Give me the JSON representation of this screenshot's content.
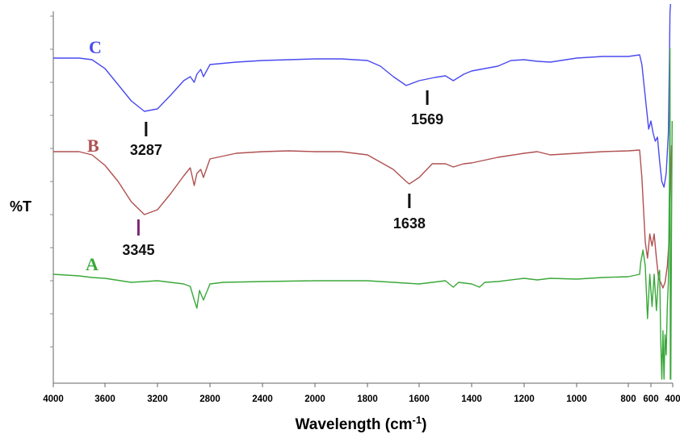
{
  "chart_data": {
    "type": "line",
    "xlabel": "Wavelength (cm",
    "xlabel_sup": "-1",
    "xlabel_close": ")",
    "ylabel": "%T",
    "xlim": [
      4000,
      400
    ],
    "x_ticks": [
      4000,
      3600,
      3200,
      2800,
      2400,
      2000,
      1800,
      1600,
      1400,
      1200,
      1000,
      800,
      600,
      400
    ],
    "x_tick_labels": [
      "4000",
      "3600",
      "3200",
      "2800",
      "2400",
      "2000",
      "1800",
      "1600",
      "1400",
      "1200",
      "1000",
      "800",
      "600",
      "400"
    ],
    "grid": false,
    "series": [
      {
        "name": "C",
        "color": "#4a4af0",
        "points": [
          [
            4000,
            72
          ],
          [
            3800,
            72
          ],
          [
            3700,
            74
          ],
          [
            3600,
            85
          ],
          [
            3500,
            105
          ],
          [
            3400,
            125
          ],
          [
            3300,
            138
          ],
          [
            3200,
            135
          ],
          [
            3100,
            118
          ],
          [
            3000,
            100
          ],
          [
            2950,
            95
          ],
          [
            2920,
            102
          ],
          [
            2900,
            92
          ],
          [
            2870,
            86
          ],
          [
            2850,
            95
          ],
          [
            2800,
            80
          ],
          [
            2600,
            77
          ],
          [
            2400,
            75
          ],
          [
            2200,
            74
          ],
          [
            2000,
            73
          ],
          [
            1900,
            73
          ],
          [
            1800,
            75
          ],
          [
            1750,
            82
          ],
          [
            1700,
            95
          ],
          [
            1650,
            106
          ],
          [
            1600,
            100
          ],
          [
            1570,
            98
          ],
          [
            1540,
            96
          ],
          [
            1500,
            94
          ],
          [
            1470,
            100
          ],
          [
            1430,
            92
          ],
          [
            1400,
            88
          ],
          [
            1300,
            82
          ],
          [
            1250,
            75
          ],
          [
            1200,
            74
          ],
          [
            1150,
            76
          ],
          [
            1100,
            77
          ],
          [
            1000,
            72
          ],
          [
            900,
            70
          ],
          [
            800,
            70
          ],
          [
            700,
            68
          ],
          [
            680,
            80
          ],
          [
            650,
            120
          ],
          [
            620,
            160
          ],
          [
            600,
            150
          ],
          [
            580,
            165
          ],
          [
            560,
            175
          ],
          [
            540,
            170
          ],
          [
            520,
            200
          ],
          [
            500,
            225
          ],
          [
            480,
            232
          ],
          [
            460,
            215
          ],
          [
            440,
            165
          ],
          [
            430,
            70
          ],
          [
            425,
            15
          ],
          [
            420,
            5
          ]
        ],
        "peaks": [
          {
            "x": 3287,
            "label": "3287"
          },
          {
            "x": 1569,
            "label": "1569"
          }
        ]
      },
      {
        "name": "B",
        "color": "#b05050",
        "points": [
          [
            4000,
            188
          ],
          [
            3800,
            188
          ],
          [
            3700,
            192
          ],
          [
            3600,
            205
          ],
          [
            3500,
            225
          ],
          [
            3400,
            250
          ],
          [
            3300,
            266
          ],
          [
            3200,
            260
          ],
          [
            3100,
            240
          ],
          [
            3000,
            218
          ],
          [
            2950,
            208
          ],
          [
            2920,
            230
          ],
          [
            2900,
            215
          ],
          [
            2870,
            210
          ],
          [
            2850,
            220
          ],
          [
            2800,
            197
          ],
          [
            2600,
            190
          ],
          [
            2400,
            188
          ],
          [
            2200,
            187
          ],
          [
            2000,
            188
          ],
          [
            1900,
            188
          ],
          [
            1800,
            192
          ],
          [
            1700,
            210
          ],
          [
            1650,
            225
          ],
          [
            1638,
            228
          ],
          [
            1600,
            220
          ],
          [
            1550,
            203
          ],
          [
            1500,
            203
          ],
          [
            1470,
            207
          ],
          [
            1430,
            203
          ],
          [
            1400,
            202
          ],
          [
            1300,
            195
          ],
          [
            1200,
            190
          ],
          [
            1150,
            188
          ],
          [
            1100,
            192
          ],
          [
            1000,
            190
          ],
          [
            900,
            188
          ],
          [
            800,
            187
          ],
          [
            700,
            186
          ],
          [
            680,
            220
          ],
          [
            650,
            300
          ],
          [
            630,
            320
          ],
          [
            610,
            290
          ],
          [
            590,
            305
          ],
          [
            570,
            290
          ],
          [
            550,
            320
          ],
          [
            530,
            345
          ],
          [
            510,
            350
          ],
          [
            490,
            357
          ],
          [
            470,
            350
          ],
          [
            450,
            330
          ],
          [
            430,
            290
          ],
          [
            420,
            230
          ],
          [
            410,
            180
          ]
        ],
        "peaks": [
          {
            "x": 3345,
            "label": "3345"
          },
          {
            "x": 1638,
            "label": "1638"
          }
        ]
      },
      {
        "name": "A",
        "color": "#3aa83a",
        "points": [
          [
            4000,
            340
          ],
          [
            3800,
            342
          ],
          [
            3700,
            344
          ],
          [
            3600,
            345
          ],
          [
            3400,
            350
          ],
          [
            3300,
            349
          ],
          [
            3200,
            348
          ],
          [
            3100,
            350
          ],
          [
            3000,
            352
          ],
          [
            2950,
            355
          ],
          [
            2920,
            372
          ],
          [
            2900,
            382
          ],
          [
            2880,
            360
          ],
          [
            2850,
            372
          ],
          [
            2800,
            352
          ],
          [
            2700,
            350
          ],
          [
            2400,
            349
          ],
          [
            2000,
            348
          ],
          [
            1800,
            348
          ],
          [
            1700,
            350
          ],
          [
            1600,
            352
          ],
          [
            1500,
            348
          ],
          [
            1470,
            356
          ],
          [
            1450,
            350
          ],
          [
            1400,
            352
          ],
          [
            1370,
            356
          ],
          [
            1350,
            350
          ],
          [
            1300,
            349
          ],
          [
            1200,
            345
          ],
          [
            1150,
            347
          ],
          [
            1100,
            345
          ],
          [
            1000,
            346
          ],
          [
            900,
            344
          ],
          [
            800,
            343
          ],
          [
            700,
            340
          ],
          [
            690,
            325
          ],
          [
            670,
            310
          ],
          [
            650,
            330
          ],
          [
            630,
            395
          ],
          [
            610,
            340
          ],
          [
            590,
            380
          ],
          [
            570,
            340
          ],
          [
            550,
            385
          ],
          [
            530,
            340
          ],
          [
            520,
            335
          ],
          [
            510,
            420
          ],
          [
            500,
            470
          ],
          [
            490,
            410
          ],
          [
            480,
            470
          ],
          [
            470,
            415
          ],
          [
            460,
            440
          ],
          [
            450,
            380
          ],
          [
            440,
            350
          ],
          [
            430,
            220
          ],
          [
            425,
            60
          ],
          [
            422,
            470
          ],
          [
            418,
            470
          ],
          [
            412,
            300
          ],
          [
            405,
            150
          ]
        ],
        "peaks": []
      }
    ]
  }
}
